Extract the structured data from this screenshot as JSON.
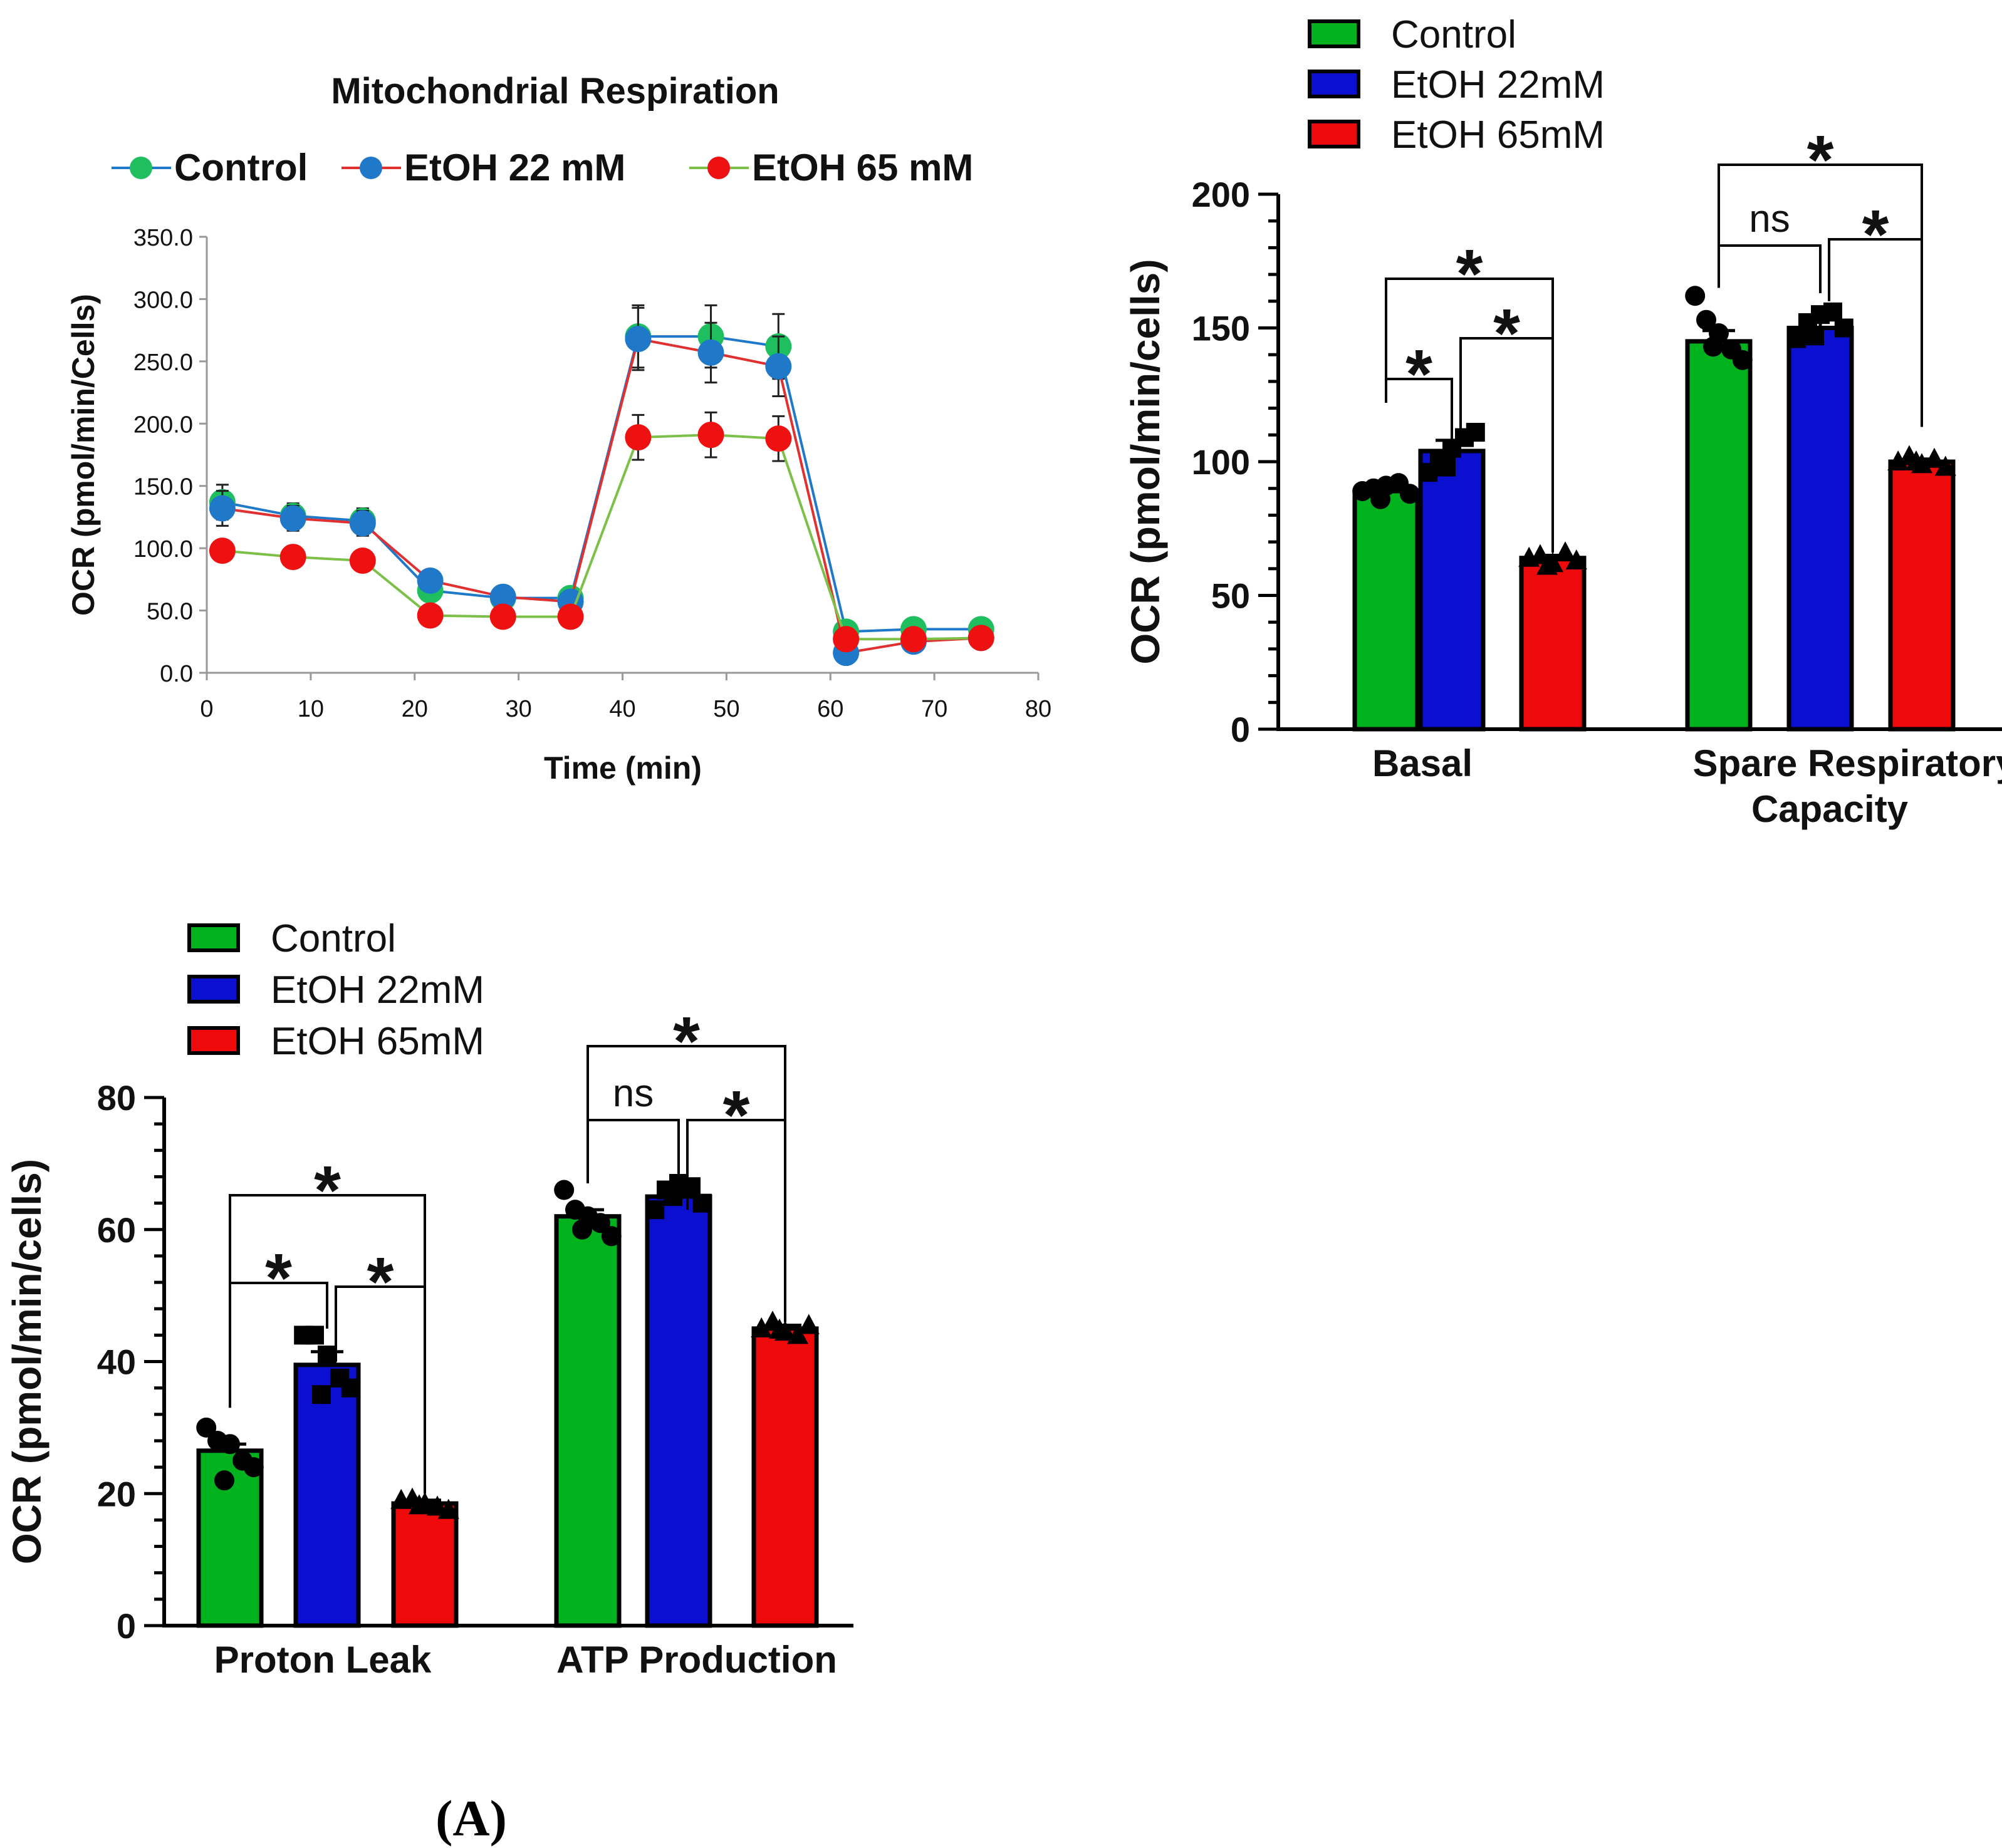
{
  "panel_label": "(A)",
  "chart_data": [
    {
      "id": "line",
      "type": "line",
      "title": "Mitochondrial Respiration",
      "xlabel": "Time (min)",
      "ylabel": "OCR (pmol/min/Cells)",
      "xlim": [
        0,
        80
      ],
      "ylim": [
        0,
        350
      ],
      "x_ticks": [
        0,
        10,
        20,
        30,
        40,
        50,
        60,
        70,
        80
      ],
      "x_tick_labels": [
        "0",
        "10",
        "20",
        "30",
        "40",
        "50",
        "60",
        "70",
        "80"
      ],
      "y_ticks": [
        0,
        50,
        100,
        150,
        200,
        250,
        300,
        350
      ],
      "y_tick_labels": [
        "0.0",
        "50.0",
        "100.0",
        "150.0",
        "200.0",
        "250.0",
        "300.0",
        "350.0"
      ],
      "legend": [
        {
          "name": "Control",
          "marker_color": "#1fbf5f",
          "line_color": "#1f78c8"
        },
        {
          "name": "EtOH 22 mM",
          "marker_color": "#1f78c8",
          "line_color": "#e03030"
        },
        {
          "name": "EtOH 65 mM",
          "marker_color": "#ee1111",
          "line_color": "#7cc04a"
        }
      ],
      "x": [
        1.5,
        8.3,
        15,
        21.5,
        28.5,
        35,
        41.5,
        48.5,
        55,
        61.5,
        68,
        74.5
      ],
      "series": [
        {
          "name": "Control",
          "marker_color": "#1fbf5f",
          "line_color": "#1f78c8",
          "values": [
            137,
            126,
            122,
            66,
            60,
            60,
            270,
            270,
            262,
            33,
            35,
            35
          ],
          "errors": [
            14,
            10,
            10,
            8,
            5,
            5,
            25,
            25,
            26,
            4,
            4,
            4
          ]
        },
        {
          "name": "EtOH 22 mM",
          "marker_color": "#1f78c8",
          "line_color": "#e03030",
          "values": [
            132,
            124,
            120,
            74,
            61,
            57,
            268,
            257,
            246,
            16,
            25,
            28
          ],
          "errors": [
            14,
            10,
            10,
            8,
            5,
            5,
            25,
            24,
            24,
            4,
            4,
            4
          ]
        },
        {
          "name": "EtOH 65 mM",
          "marker_color": "#ee1111",
          "line_color": "#7cc04a",
          "values": [
            98,
            93,
            90,
            46,
            45,
            45,
            189,
            191,
            188,
            27,
            27,
            28
          ],
          "errors": [
            8,
            6,
            6,
            5,
            5,
            5,
            18,
            18,
            18,
            4,
            4,
            4
          ]
        }
      ]
    },
    {
      "id": "bar1",
      "type": "bar",
      "ylabel": "OCR (pmol/min/cells)",
      "ylim": [
        0,
        200
      ],
      "y_ticks": [
        0,
        50,
        100,
        150,
        200
      ],
      "y_tick_labels": [
        "0",
        "50",
        "100",
        "150",
        "200"
      ],
      "legend": [
        {
          "name": "Control",
          "color": "#00b21e"
        },
        {
          "name": "EtOH 22mM",
          "color": "#0a0fd0"
        },
        {
          "name": "EtOH 65mM",
          "color": "#ee0a0a"
        }
      ],
      "groups": [
        {
          "label": "Basal",
          "means": [
            89,
            104,
            64
          ],
          "sems": [
            1,
            4,
            1
          ],
          "points": [
            [
              89,
              90,
              91,
              92,
              88,
              86
            ],
            [
              96,
              101,
              105,
              109,
              111,
              98
            ],
            [
              64,
              65,
              62,
              66,
              63,
              61
            ]
          ]
        },
        {
          "label": "Spare  Respiratory",
          "label2": "Capacity",
          "means": [
            145,
            150,
            100
          ],
          "sems": [
            4,
            3,
            1
          ],
          "points": [
            [
              162,
              153,
              148,
              142,
              138,
              143
            ],
            [
              146,
              152,
              155,
              156,
              150,
              147
            ],
            [
              100,
              102,
              99,
              101,
              98,
              100
            ]
          ]
        }
      ],
      "comparisons": [
        {
          "group": 0,
          "from": 0,
          "to": 1,
          "label": "*"
        },
        {
          "group": 0,
          "from": 1,
          "to": 2,
          "label": "*"
        },
        {
          "group": 0,
          "from": 0,
          "to": 2,
          "label": "*"
        },
        {
          "group": 1,
          "from": 0,
          "to": 1,
          "label": "ns"
        },
        {
          "group": 1,
          "from": 1,
          "to": 2,
          "label": "*"
        },
        {
          "group": 1,
          "from": 0,
          "to": 2,
          "label": "*"
        }
      ]
    },
    {
      "id": "bar2",
      "type": "bar",
      "ylabel": "OCR (pmol/min/cells)",
      "ylim": [
        0,
        80
      ],
      "y_ticks": [
        0,
        20,
        40,
        60,
        80
      ],
      "y_tick_labels": [
        "0",
        "20",
        "40",
        "60",
        "80"
      ],
      "legend": [
        {
          "name": "Control",
          "color": "#00b21e"
        },
        {
          "name": "EtOH 22mM",
          "color": "#0a0fd0"
        },
        {
          "name": "EtOH 65mM",
          "color": "#ee0a0a"
        }
      ],
      "groups": [
        {
          "label": "Proton Leak",
          "means": [
            26.5,
            39.5,
            18.5
          ],
          "sems": [
            1,
            2,
            0.5
          ],
          "points": [
            [
              30,
              28,
              27.5,
              25,
              24,
              22
            ],
            [
              44,
              44,
              41,
              37.5,
              36,
              35
            ],
            [
              19,
              19.2,
              18.5,
              18,
              17.5,
              18.2
            ]
          ]
        },
        {
          "label": "ATP Production",
          "means": [
            62,
            65,
            45
          ],
          "sems": [
            1,
            1,
            0.5
          ],
          "points": [
            [
              66,
              63,
              62,
              61,
              59,
              60
            ],
            [
              63,
              66,
              67,
              66.5,
              64,
              65
            ],
            [
              45,
              46,
              44.5,
              44,
              45.5,
              44.8
            ]
          ]
        }
      ],
      "comparisons": [
        {
          "group": 0,
          "from": 0,
          "to": 1,
          "label": "*"
        },
        {
          "group": 0,
          "from": 1,
          "to": 2,
          "label": "*"
        },
        {
          "group": 0,
          "from": 0,
          "to": 2,
          "label": "*"
        },
        {
          "group": 1,
          "from": 0,
          "to": 1,
          "label": "ns"
        },
        {
          "group": 1,
          "from": 1,
          "to": 2,
          "label": "*"
        },
        {
          "group": 1,
          "from": 0,
          "to": 2,
          "label": "*"
        }
      ]
    }
  ]
}
